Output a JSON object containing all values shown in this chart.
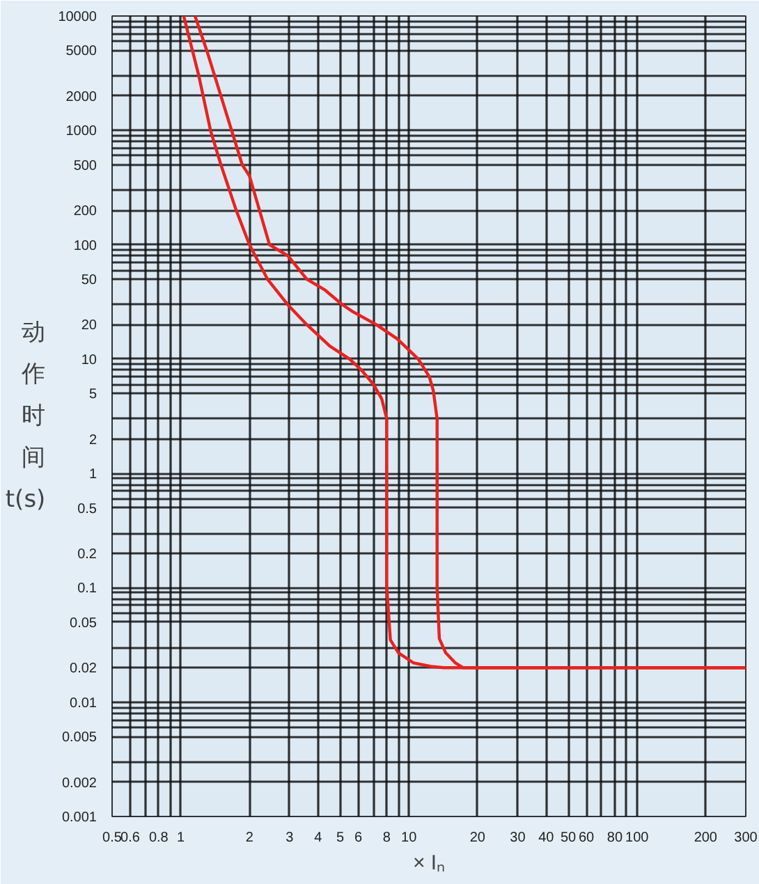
{
  "chart_data": {
    "type": "line",
    "xlabel": "× Iₙ",
    "ylabel": "动作时间 t(s)",
    "log": "xy",
    "grid": true,
    "marker": "none",
    "line_style": "solid",
    "xlim": [
      0.5,
      300
    ],
    "ylim": [
      0.001,
      10000
    ],
    "xticks": [
      0.5,
      0.6,
      {
        "value": 0.7,
        "label": null
      },
      0.8,
      {
        "value": 0.9,
        "label": null
      },
      1,
      2,
      3,
      4,
      5,
      6,
      {
        "value": 7,
        "label": null
      },
      8,
      {
        "value": 9,
        "label": null
      },
      10,
      20,
      30,
      40,
      50,
      60,
      {
        "value": 70,
        "label": null
      },
      80,
      {
        "value": 90,
        "label": null
      },
      100,
      200,
      300
    ],
    "yticks": [
      0.001,
      0.002,
      {
        "value": 0.003,
        "label": null
      },
      0.005,
      {
        "value": 0.006,
        "label": null
      },
      {
        "value": 0.007,
        "label": null
      },
      {
        "value": 0.008,
        "label": null
      },
      {
        "value": 0.009,
        "label": null
      },
      0.01,
      0.02,
      {
        "value": 0.03,
        "label": null
      },
      0.05,
      {
        "value": 0.06,
        "label": null
      },
      {
        "value": 0.07,
        "label": null
      },
      {
        "value": 0.08,
        "label": null
      },
      {
        "value": 0.09,
        "label": null
      },
      0.1,
      0.2,
      {
        "value": 0.3,
        "label": null
      },
      0.5,
      {
        "value": 0.6,
        "label": null
      },
      {
        "value": 0.7,
        "label": null
      },
      {
        "value": 0.8,
        "label": null
      },
      {
        "value": 0.9,
        "label": null
      },
      1,
      2,
      {
        "value": 3,
        "label": null
      },
      5,
      {
        "value": 6,
        "label": null
      },
      {
        "value": 7,
        "label": null
      },
      {
        "value": 8,
        "label": null
      },
      {
        "value": 9,
        "label": null
      },
      10,
      20,
      {
        "value": 30,
        "label": null
      },
      50,
      {
        "value": 60,
        "label": null
      },
      {
        "value": 70,
        "label": null
      },
      {
        "value": 80,
        "label": null
      },
      {
        "value": 90,
        "label": null
      },
      100,
      200,
      {
        "value": 300,
        "label": null
      },
      500,
      {
        "value": 600,
        "label": null
      },
      {
        "value": 700,
        "label": null
      },
      {
        "value": 800,
        "label": null
      },
      {
        "value": 900,
        "label": null
      },
      1000,
      2000,
      {
        "value": 3000,
        "label": null
      },
      5000,
      {
        "value": 6000,
        "label": null
      },
      {
        "value": 7000,
        "label": null
      },
      {
        "value": 8000,
        "label": null
      },
      {
        "value": 9000,
        "label": null
      },
      10000
    ],
    "series": [
      {
        "color": "#e8231f",
        "x": [
          1.03,
          1.2,
          1.35,
          1.5,
          1.75,
          2.0,
          2.4,
          2.94,
          3.57,
          4.5,
          5.5,
          6.2,
          7.0,
          7.6,
          8.0,
          8.0,
          8.0,
          8.3,
          9.0,
          10.5,
          12.5,
          14.2,
          20,
          50,
          100,
          200,
          300
        ],
        "values": [
          10000,
          3000,
          1000,
          500,
          200,
          100,
          50,
          30,
          20,
          13,
          10,
          8,
          6,
          4.5,
          3,
          1,
          0.1,
          0.035,
          0.027,
          0.022,
          0.0205,
          0.02,
          0.02,
          0.02,
          0.02,
          0.02,
          0.02
        ]
      },
      {
        "color": "#e8231f",
        "x": [
          1.155,
          1.3,
          1.5,
          1.86,
          2.0,
          2.45,
          2.95,
          3.57,
          4.3,
          5.1,
          5.67,
          7.2,
          8.9,
          11.0,
          12.3,
          12.8,
          13.3,
          13.3,
          13.3,
          13.6,
          14.5,
          16,
          17.3,
          20,
          50,
          100,
          200,
          300
        ],
        "values": [
          10000,
          5000,
          2000,
          500,
          400,
          100,
          80,
          50,
          40,
          30,
          26,
          20,
          15,
          10,
          7,
          5.3,
          3,
          1,
          0.1,
          0.036,
          0.027,
          0.022,
          0.02,
          0.02,
          0.02,
          0.02,
          0.02,
          0.02
        ]
      }
    ]
  }
}
